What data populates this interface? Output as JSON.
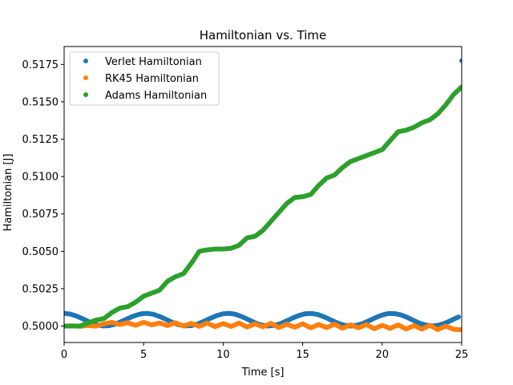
{
  "chart_data": {
    "type": "scatter",
    "title": "Hamiltonian vs. Time",
    "xlabel": "Time [s]",
    "ylabel": "Hamiltonian [J]",
    "xlim": [
      0,
      25
    ],
    "ylim": [
      0.4989,
      0.5187
    ],
    "xticks": [
      0,
      5,
      10,
      15,
      20,
      25
    ],
    "yticks": [
      0.5,
      0.5025,
      0.505,
      0.5075,
      0.51,
      0.5125,
      0.515,
      0.5175
    ],
    "xtick_labels": [
      "0",
      "5",
      "10",
      "15",
      "20",
      "25"
    ],
    "ytick_labels": [
      "0.5000",
      "0.5025",
      "0.5050",
      "0.5075",
      "0.5100",
      "0.5125",
      "0.5150",
      "0.5175"
    ],
    "grid": false,
    "legend_position": "upper-left",
    "series": [
      {
        "name": "Verlet Hamiltonian",
        "color": "#1f77b4",
        "x": [
          0,
          0.4,
          0.8,
          1.2,
          1.6,
          2.0,
          2.4,
          2.8,
          3.2,
          3.6,
          4.0,
          4.4,
          4.8,
          5.2,
          5.6,
          6.0,
          6.4,
          6.8,
          7.2,
          7.6,
          8.0,
          8.4,
          8.8,
          9.2,
          9.6,
          10.0,
          10.4,
          10.8,
          11.2,
          11.6,
          12.0,
          12.4,
          12.8,
          13.2,
          13.6,
          14.0,
          14.4,
          14.8,
          15.2,
          15.6,
          16.0,
          16.4,
          16.8,
          17.2,
          17.6,
          18.0,
          18.4,
          18.8,
          19.2,
          19.6,
          20.0,
          20.4,
          20.8,
          21.2,
          21.6,
          22.0,
          22.4,
          22.8,
          23.2,
          23.6,
          24.0,
          24.4,
          24.8,
          25.0
        ],
        "y": [
          0.50085,
          0.5008,
          0.50066,
          0.50047,
          0.50027,
          0.5001,
          0.50001,
          0.50002,
          0.50012,
          0.5003,
          0.5005,
          0.50068,
          0.50081,
          0.50085,
          0.50079,
          0.50064,
          0.50045,
          0.50025,
          0.50009,
          0.50001,
          0.50003,
          0.50014,
          0.50032,
          0.50052,
          0.5007,
          0.50082,
          0.50085,
          0.50078,
          0.50062,
          0.50042,
          0.50022,
          0.50007,
          0.5,
          0.50004,
          0.50016,
          0.50035,
          0.50055,
          0.50072,
          0.50083,
          0.50084,
          0.50076,
          0.50059,
          0.50039,
          0.5002,
          0.50006,
          0.5,
          0.50005,
          0.50018,
          0.50037,
          0.50057,
          0.50074,
          0.50084,
          0.50083,
          0.50074,
          0.50057,
          0.50036,
          0.50017,
          0.50005,
          0.50001,
          0.50007,
          0.50021,
          0.50041,
          0.50061,
          0.51775
        ]
      },
      {
        "name": "RK45 Hamiltonian",
        "color": "#ff7f0e",
        "x": [
          0,
          0.5,
          1.0,
          1.5,
          2.0,
          2.5,
          3.0,
          3.5,
          4.0,
          4.5,
          5.0,
          5.5,
          6.0,
          6.5,
          7.0,
          7.5,
          8.0,
          8.5,
          9.0,
          9.5,
          10.0,
          10.5,
          11.0,
          11.5,
          12.0,
          12.5,
          13.0,
          13.5,
          14.0,
          14.5,
          15.0,
          15.5,
          16.0,
          16.5,
          17.0,
          17.5,
          18.0,
          18.5,
          19.0,
          19.5,
          20.0,
          20.5,
          21.0,
          21.5,
          22.0,
          22.5,
          23.0,
          23.5,
          24.0,
          24.5,
          25.0
        ],
        "y": [
          0.5,
          0.50002,
          0.49998,
          0.50004,
          0.49999,
          0.50015,
          0.50025,
          0.5001,
          0.50022,
          0.50005,
          0.50025,
          0.50008,
          0.5002,
          0.50003,
          0.50022,
          0.5,
          0.50018,
          0.49998,
          0.5002,
          0.49996,
          0.50017,
          0.49997,
          0.5002,
          0.49993,
          0.50015,
          0.49995,
          0.50018,
          0.4999,
          0.50012,
          0.49992,
          0.50015,
          0.49988,
          0.5001,
          0.4999,
          0.50012,
          0.49985,
          0.50008,
          0.49988,
          0.5001,
          0.49982,
          0.50005,
          0.49984,
          0.50008,
          0.4998,
          0.50003,
          0.4998,
          0.50005,
          0.49976,
          0.5,
          0.49978,
          0.49975
        ]
      },
      {
        "name": "Adams Hamiltonian",
        "color": "#2ca02c",
        "x": [
          0,
          0.5,
          1.0,
          1.5,
          2.0,
          2.5,
          3.0,
          3.5,
          4.0,
          4.5,
          5.0,
          5.5,
          6.0,
          6.5,
          7.0,
          7.5,
          8.0,
          8.5,
          9.0,
          9.5,
          10.0,
          10.5,
          11.0,
          11.5,
          12.0,
          12.5,
          13.0,
          13.5,
          14.0,
          14.5,
          15.0,
          15.5,
          16.0,
          16.5,
          17.0,
          17.5,
          18.0,
          18.5,
          19.0,
          19.5,
          20.0,
          20.5,
          21.0,
          21.5,
          22.0,
          22.5,
          23.0,
          23.5,
          24.0,
          24.5,
          25.0
        ],
        "y": [
          0.5,
          0.5,
          0.5,
          0.5002,
          0.5004,
          0.5005,
          0.5009,
          0.5012,
          0.5013,
          0.5016,
          0.502,
          0.5022,
          0.5024,
          0.503,
          0.5033,
          0.5035,
          0.5042,
          0.505,
          0.5051,
          0.50515,
          0.50515,
          0.5052,
          0.5054,
          0.5059,
          0.506,
          0.5064,
          0.507,
          0.5076,
          0.5082,
          0.5086,
          0.50865,
          0.5088,
          0.5094,
          0.5099,
          0.5101,
          0.5106,
          0.511,
          0.5112,
          0.5114,
          0.5116,
          0.5118,
          0.5124,
          0.513,
          0.5131,
          0.5133,
          0.5136,
          0.5138,
          0.5142,
          0.5148,
          0.5155,
          0.516
        ]
      }
    ]
  }
}
